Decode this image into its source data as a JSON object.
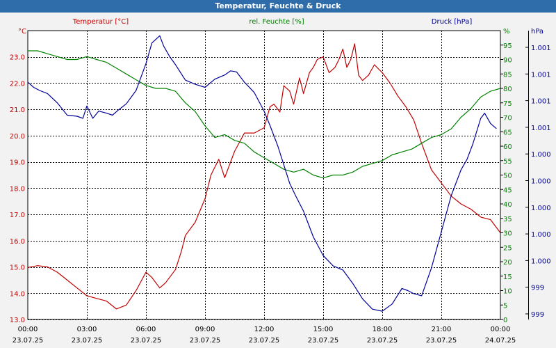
{
  "window": {
    "title": "Temperatur, Feuchte & Druck"
  },
  "colors": {
    "temperature": "#c00000",
    "humidity": "#008000",
    "pressure": "#000099",
    "grid": "#000000"
  },
  "chart_data": {
    "type": "line",
    "title": "Temperatur, Feuchte & Druck",
    "grid": true,
    "x_tick_times": [
      "00:00",
      "03:00",
      "06:00",
      "09:00",
      "12:00",
      "15:00",
      "18:00",
      "21:00",
      "00:00"
    ],
    "x_tick_dates": [
      "23.07.25",
      "23.07.25",
      "23.07.25",
      "23.07.25",
      "23.07.25",
      "23.07.25",
      "23.07.25",
      "23.07.25",
      "24.07.25"
    ],
    "xlim": [
      0,
      24
    ],
    "axes": {
      "temperature": {
        "series_label": "Temperatur [°C]",
        "unit": "°C",
        "ylim": [
          13.0,
          24.0
        ],
        "ticks": [
          "13.0",
          "14.0",
          "15.0",
          "16.0",
          "17.0",
          "18.0",
          "19.0",
          "20.0",
          "21.0",
          "22.0",
          "23.0"
        ]
      },
      "humidity": {
        "series_label": "rel. Feuchte [%]",
        "unit": "%",
        "ylim": [
          0,
          100
        ],
        "ticks": [
          "0",
          "5",
          "10",
          "15",
          "20",
          "25",
          "30",
          "35",
          "40",
          "45",
          "50",
          "55",
          "60",
          "65",
          "70",
          "75",
          "80",
          "85",
          "90",
          "95"
        ]
      },
      "pressure": {
        "series_label": "Druck [hPa]",
        "unit": "hPa",
        "ylim": [
          998.9,
          1001.7
        ],
        "ticks": [
          "999",
          "999",
          "1.000",
          "1.000",
          "1.000",
          "1.000",
          "1.000",
          "1.001",
          "1.001",
          "1.001",
          "1.001"
        ]
      }
    },
    "series": [
      {
        "name": "Temperatur [°C]",
        "axis": "temperature",
        "x": [
          0,
          0.5,
          1,
          1.5,
          2,
          2.5,
          3,
          3.5,
          4,
          4.5,
          5,
          5.5,
          6,
          6.3,
          6.7,
          7,
          7.5,
          7.8,
          8,
          8.5,
          9,
          9.3,
          9.7,
          10,
          10.5,
          11,
          11.5,
          12,
          12.3,
          12.5,
          12.8,
          13,
          13.3,
          13.5,
          13.8,
          14,
          14.3,
          14.5,
          14.7,
          15,
          15.3,
          15.6,
          15.8,
          16,
          16.2,
          16.4,
          16.6,
          16.8,
          17,
          17.3,
          17.6,
          18,
          18.4,
          18.8,
          19.2,
          19.6,
          20,
          20.5,
          21,
          21.5,
          22,
          22.5,
          23,
          23.5,
          24
        ],
        "values": [
          14.98,
          15.05,
          15.0,
          14.8,
          14.5,
          14.2,
          13.9,
          13.8,
          13.7,
          13.4,
          13.55,
          14.1,
          14.8,
          14.6,
          14.2,
          14.4,
          14.9,
          15.6,
          16.2,
          16.7,
          17.6,
          18.5,
          19.1,
          18.4,
          19.4,
          20.1,
          20.1,
          20.3,
          21.1,
          21.2,
          20.9,
          21.9,
          21.7,
          21.2,
          22.2,
          21.6,
          22.4,
          22.6,
          22.9,
          23.0,
          22.4,
          22.6,
          22.9,
          23.3,
          22.6,
          22.9,
          23.5,
          22.3,
          22.1,
          22.3,
          22.7,
          22.4,
          22.0,
          21.5,
          21.1,
          20.6,
          19.7,
          18.7,
          18.2,
          17.7,
          17.4,
          17.2,
          16.9,
          16.8,
          16.3
        ]
      },
      {
        "name": "rel. Feuchte [%]",
        "axis": "humidity",
        "x": [
          0,
          0.5,
          1,
          1.5,
          2,
          2.5,
          3,
          3.5,
          4,
          4.5,
          5,
          5.5,
          6,
          6.5,
          7,
          7.5,
          8,
          8.5,
          9,
          9.5,
          10,
          10.5,
          11,
          11.5,
          12,
          12.5,
          13,
          13.5,
          14,
          14.5,
          15,
          15.5,
          16,
          16.5,
          17,
          17.5,
          18,
          18.5,
          19,
          19.5,
          20,
          20.5,
          21,
          21.5,
          22,
          22.5,
          23,
          23.5,
          24
        ],
        "values": [
          93,
          93,
          92,
          91,
          90,
          90,
          91,
          90,
          89,
          87,
          85,
          83,
          81,
          80,
          80,
          79,
          75,
          72,
          67,
          63,
          64,
          62,
          61,
          58,
          56,
          54,
          52,
          51,
          52,
          50,
          49,
          50,
          50,
          51,
          53,
          54,
          55,
          57,
          58,
          59,
          61,
          63,
          64,
          66,
          70,
          73,
          77,
          79,
          80
        ]
      },
      {
        "name": "Druck [hPa]",
        "axis": "pressure",
        "x": [
          0,
          0.3,
          0.6,
          1,
          1.5,
          2,
          2.5,
          2.8,
          3,
          3.3,
          3.6,
          4,
          4.3,
          4.6,
          5,
          5.5,
          6,
          6.3,
          6.7,
          6.9,
          7.2,
          7.5,
          8,
          8.5,
          9,
          9.5,
          10,
          10.3,
          10.6,
          11,
          11.5,
          12,
          12.3,
          12.7,
          13,
          13.3,
          13.6,
          14,
          14.5,
          15,
          15.5,
          16,
          16.5,
          17,
          17.5,
          18,
          18.5,
          19,
          19.3,
          19.6,
          20,
          20.5,
          21,
          21.5,
          22,
          22.3,
          22.6,
          23,
          23.2,
          23.5,
          23.8
        ],
        "values": [
          1001.2,
          1001.15,
          1001.12,
          1001.09,
          1001.0,
          1000.88,
          1000.87,
          1000.85,
          1000.97,
          1000.85,
          1000.92,
          1000.9,
          1000.88,
          1000.93,
          1000.99,
          1001.12,
          1001.38,
          1001.58,
          1001.65,
          1001.55,
          1001.45,
          1001.37,
          1001.22,
          1001.18,
          1001.15,
          1001.23,
          1001.27,
          1001.31,
          1001.3,
          1001.2,
          1001.1,
          1000.92,
          1000.78,
          1000.58,
          1000.4,
          1000.22,
          1000.1,
          999.95,
          999.7,
          999.52,
          999.42,
          999.38,
          999.25,
          999.1,
          999.0,
          998.98,
          999.05,
          999.2,
          999.18,
          999.15,
          999.13,
          999.4,
          999.75,
          1000.1,
          1000.35,
          1000.45,
          1000.6,
          1000.85,
          1000.9,
          1000.8,
          1000.75
        ]
      }
    ]
  }
}
